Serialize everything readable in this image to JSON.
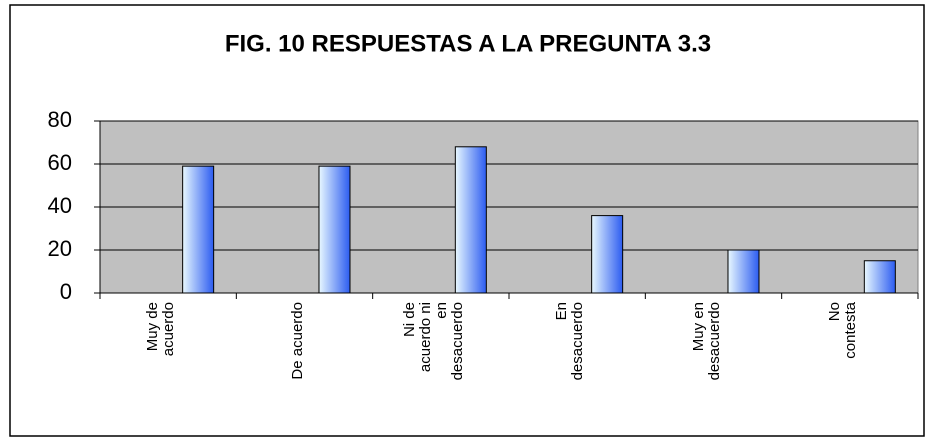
{
  "chart_data": {
    "type": "bar",
    "title": "FIG. 10 RESPUESTAS A LA PREGUNTA 3.3",
    "categories": [
      "Muy de\nacuerdo",
      "De acuerdo",
      "Ni de\nacuerdo ni\nen\ndesacuerdo",
      "En\ndesacuerdo",
      "Muy en\ndesacuerdo",
      "No\ncontesta"
    ],
    "values": [
      59,
      59,
      68,
      36,
      20,
      15
    ],
    "color": "#3366ff",
    "ylim": [
      0,
      80
    ],
    "yticks": [
      0,
      20,
      40,
      60,
      80
    ],
    "grid": true
  }
}
